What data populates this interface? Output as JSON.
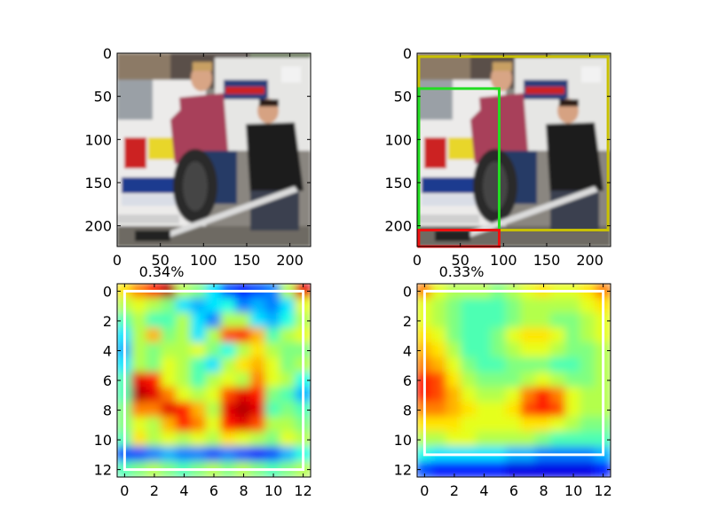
{
  "colors": {
    "box_yellow": "#c8c000",
    "box_green": "#22dd22",
    "box_red": "#ee1111",
    "box_white": "#ffffff",
    "colormap": "jet"
  },
  "chart_data": [
    {
      "type": "image",
      "panel": "top-left",
      "content": "photo: two men with a car tire beside a white rally car",
      "xlim": [
        0,
        224
      ],
      "ylim": [
        224,
        0
      ],
      "xticks": [
        "0",
        "50",
        "100",
        "150",
        "200"
      ],
      "yticks": [
        "0",
        "50",
        "100",
        "150",
        "200"
      ],
      "tick_values_x": [
        0,
        50,
        100,
        150,
        200
      ],
      "tick_values_y": [
        0,
        50,
        100,
        150,
        200
      ],
      "boxes": []
    },
    {
      "type": "image",
      "panel": "top-right",
      "content": "same photo with bounding boxes",
      "xlim": [
        0,
        224
      ],
      "ylim": [
        224,
        0
      ],
      "xticks": [
        "0",
        "50",
        "100",
        "150",
        "200"
      ],
      "yticks": [
        "0",
        "50",
        "100",
        "150",
        "200"
      ],
      "tick_values_x": [
        0,
        50,
        100,
        150,
        200
      ],
      "tick_values_y": [
        0,
        50,
        100,
        150,
        200
      ],
      "boxes": [
        {
          "color": "yellow",
          "x0": 2,
          "y0": 4,
          "x1": 221,
          "y1": 205
        },
        {
          "color": "green",
          "x0": 2,
          "y0": 41,
          "x1": 95,
          "y1": 224
        },
        {
          "color": "red",
          "x0": 2,
          "y0": 205,
          "x1": 95,
          "y1": 224
        }
      ]
    },
    {
      "type": "heatmap",
      "panel": "bottom-left",
      "title": "0.34%",
      "colormap": "jet",
      "xlim": [
        -0.5,
        12.5
      ],
      "ylim": [
        12.5,
        -0.5
      ],
      "xticks": [
        "0",
        "2",
        "4",
        "6",
        "8",
        "10",
        "12"
      ],
      "yticks": [
        "0",
        "2",
        "4",
        "6",
        "8",
        "10",
        "12"
      ],
      "tick_values_x": [
        0,
        2,
        4,
        6,
        8,
        10,
        12
      ],
      "tick_values_y": [
        0,
        2,
        4,
        6,
        8,
        10,
        12
      ],
      "box": {
        "color": "white",
        "x0": 0,
        "y0": 0,
        "x1": 12,
        "y1": 12
      },
      "values": [
        [
          0.65,
          0.75,
          0.85,
          0.95,
          0.55,
          0.5,
          0.35,
          0.2,
          0.15,
          0.2,
          0.25,
          0.55,
          0.9
        ],
        [
          0.55,
          0.6,
          0.55,
          0.5,
          0.35,
          0.3,
          0.35,
          0.4,
          0.25,
          0.3,
          0.25,
          0.35,
          0.6
        ],
        [
          0.45,
          0.55,
          0.45,
          0.45,
          0.55,
          0.35,
          0.25,
          0.55,
          0.55,
          0.35,
          0.3,
          0.4,
          0.55
        ],
        [
          0.35,
          0.55,
          0.7,
          0.5,
          0.55,
          0.35,
          0.55,
          0.8,
          0.85,
          0.7,
          0.45,
          0.55,
          0.6
        ],
        [
          0.3,
          0.55,
          0.5,
          0.55,
          0.55,
          0.6,
          0.5,
          0.4,
          0.55,
          0.65,
          0.55,
          0.5,
          0.5
        ],
        [
          0.35,
          0.55,
          0.5,
          0.6,
          0.55,
          0.45,
          0.35,
          0.55,
          0.65,
          0.7,
          0.6,
          0.5,
          0.55
        ],
        [
          0.45,
          0.9,
          0.85,
          0.6,
          0.55,
          0.45,
          0.55,
          0.6,
          0.55,
          0.75,
          0.6,
          0.55,
          0.4
        ],
        [
          0.45,
          0.95,
          0.9,
          0.75,
          0.6,
          0.55,
          0.6,
          0.8,
          0.9,
          0.85,
          0.5,
          0.45,
          0.3
        ],
        [
          0.5,
          0.75,
          0.75,
          0.9,
          0.85,
          0.7,
          0.55,
          0.9,
          0.95,
          0.9,
          0.45,
          0.5,
          0.45
        ],
        [
          0.5,
          0.6,
          0.55,
          0.7,
          0.85,
          0.75,
          0.6,
          0.85,
          0.9,
          0.8,
          0.55,
          0.55,
          0.5
        ],
        [
          0.45,
          0.65,
          0.55,
          0.6,
          0.55,
          0.6,
          0.55,
          0.65,
          0.6,
          0.55,
          0.5,
          0.6,
          0.55
        ],
        [
          0.2,
          0.2,
          0.25,
          0.3,
          0.25,
          0.25,
          0.2,
          0.25,
          0.2,
          0.15,
          0.2,
          0.3,
          0.4
        ],
        [
          0.45,
          0.5,
          0.55,
          0.5,
          0.45,
          0.5,
          0.55,
          0.5,
          0.55,
          0.5,
          0.45,
          0.5,
          0.55
        ]
      ]
    },
    {
      "type": "heatmap",
      "panel": "bottom-right",
      "title": "0.33%",
      "colormap": "jet",
      "xlim": [
        -0.5,
        12.5
      ],
      "ylim": [
        12.5,
        -0.5
      ],
      "xticks": [
        "0",
        "2",
        "4",
        "6",
        "8",
        "10",
        "12"
      ],
      "yticks": [
        "0",
        "2",
        "4",
        "6",
        "8",
        "10",
        "12"
      ],
      "tick_values_x": [
        0,
        2,
        4,
        6,
        8,
        10,
        12
      ],
      "tick_values_y": [
        0,
        2,
        4,
        6,
        8,
        10,
        12
      ],
      "box": {
        "color": "white",
        "x0": 0,
        "y0": 0,
        "x1": 12,
        "y1": 11
      },
      "values": [
        [
          0.75,
          0.6,
          0.55,
          0.55,
          0.55,
          0.5,
          0.55,
          0.6,
          0.65,
          0.6,
          0.6,
          0.65,
          0.75
        ],
        [
          0.6,
          0.55,
          0.5,
          0.45,
          0.45,
          0.45,
          0.5,
          0.55,
          0.55,
          0.55,
          0.55,
          0.6,
          0.65
        ],
        [
          0.6,
          0.55,
          0.5,
          0.45,
          0.45,
          0.45,
          0.5,
          0.55,
          0.55,
          0.5,
          0.5,
          0.55,
          0.6
        ],
        [
          0.65,
          0.6,
          0.5,
          0.45,
          0.45,
          0.5,
          0.6,
          0.65,
          0.65,
          0.6,
          0.5,
          0.55,
          0.6
        ],
        [
          0.7,
          0.65,
          0.55,
          0.45,
          0.45,
          0.5,
          0.55,
          0.6,
          0.6,
          0.55,
          0.5,
          0.5,
          0.55
        ],
        [
          0.75,
          0.7,
          0.6,
          0.5,
          0.45,
          0.45,
          0.5,
          0.5,
          0.5,
          0.45,
          0.45,
          0.5,
          0.55
        ],
        [
          0.85,
          0.8,
          0.65,
          0.55,
          0.5,
          0.5,
          0.5,
          0.55,
          0.6,
          0.55,
          0.5,
          0.5,
          0.55
        ],
        [
          0.85,
          0.8,
          0.7,
          0.6,
          0.55,
          0.55,
          0.6,
          0.75,
          0.85,
          0.75,
          0.6,
          0.55,
          0.55
        ],
        [
          0.75,
          0.75,
          0.7,
          0.65,
          0.6,
          0.6,
          0.65,
          0.8,
          0.85,
          0.8,
          0.6,
          0.55,
          0.55
        ],
        [
          0.65,
          0.65,
          0.65,
          0.6,
          0.6,
          0.6,
          0.6,
          0.65,
          0.65,
          0.6,
          0.55,
          0.5,
          0.5
        ],
        [
          0.55,
          0.55,
          0.6,
          0.6,
          0.55,
          0.55,
          0.55,
          0.55,
          0.5,
          0.45,
          0.45,
          0.45,
          0.45
        ],
        [
          0.4,
          0.35,
          0.35,
          0.35,
          0.35,
          0.35,
          0.3,
          0.3,
          0.25,
          0.25,
          0.25,
          0.25,
          0.3
        ],
        [
          0.2,
          0.15,
          0.15,
          0.15,
          0.15,
          0.15,
          0.1,
          0.1,
          0.1,
          0.1,
          0.1,
          0.1,
          0.15
        ]
      ]
    }
  ]
}
